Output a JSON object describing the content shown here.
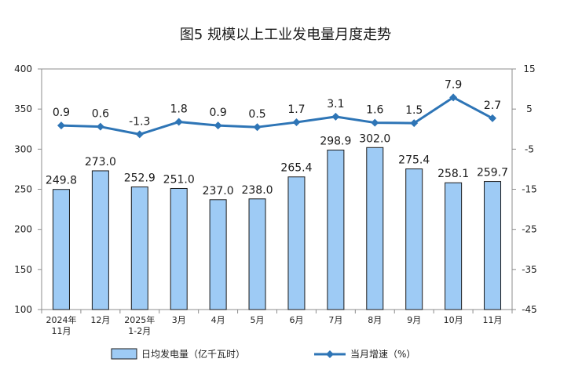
{
  "chart_data": {
    "type": "bar",
    "title": "图5  规模以上工业发电量月度走势",
    "categories": [
      "2024年\n11月",
      "12月",
      "2025年\n1-2月",
      "3月",
      "4月",
      "5月",
      "6月",
      "7月",
      "8月",
      "9月",
      "10月",
      "11月"
    ],
    "series": [
      {
        "name": "日均发电量（亿千瓦时）",
        "type": "bar",
        "axis": "left",
        "color": "#9ecbf5",
        "values": [
          249.8,
          273.0,
          252.9,
          251.0,
          237.0,
          238.0,
          265.4,
          298.9,
          302.0,
          275.4,
          258.1,
          259.7
        ],
        "labels": [
          "249.8",
          "273.0",
          "252.9",
          "251.0",
          "237.0",
          "238.0",
          "265.4",
          "298.9",
          "302.0",
          "275.4",
          "258.1",
          "259.7"
        ]
      },
      {
        "name": "当月增速（%）",
        "type": "line",
        "axis": "right",
        "color": "#2e75b6",
        "values": [
          0.9,
          0.6,
          -1.3,
          1.8,
          0.9,
          0.5,
          1.7,
          3.1,
          1.6,
          1.5,
          7.9,
          2.7
        ],
        "labels": [
          "0.9",
          "0.6",
          "-1.3",
          "1.8",
          "0.9",
          "0.5",
          "1.7",
          "3.1",
          "1.6",
          "1.5",
          "7.9",
          "2.7"
        ]
      }
    ],
    "y_left": {
      "ylim": [
        100,
        400
      ],
      "ticks": [
        100,
        150,
        200,
        250,
        300,
        350,
        400
      ]
    },
    "y_right": {
      "ylim": [
        -45,
        15
      ],
      "ticks": [
        -45,
        -35,
        -25,
        -15,
        -5,
        5,
        15
      ]
    },
    "grid": false,
    "legend": "bottom"
  }
}
